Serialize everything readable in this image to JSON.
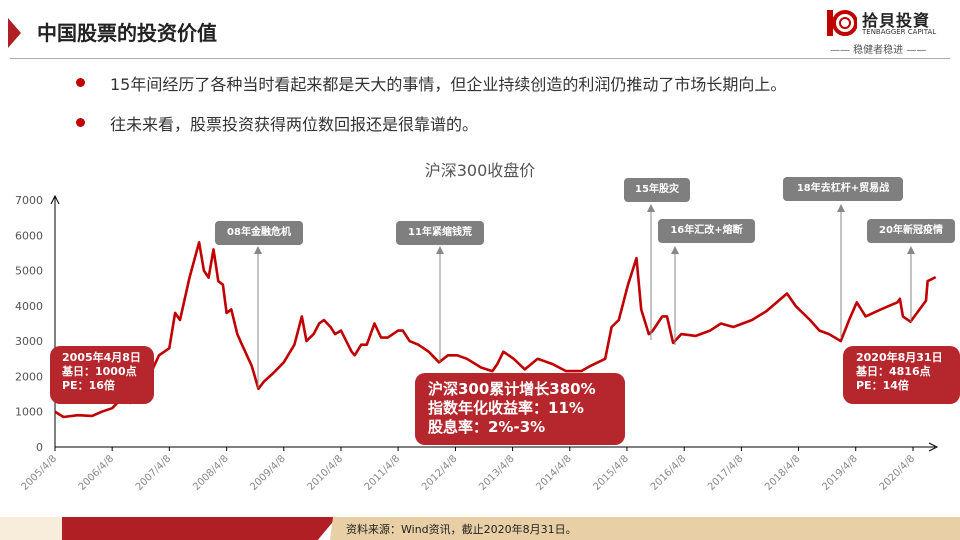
{
  "header": {
    "title": "中国股票的投资价值",
    "brand_cn": "拾貝投資",
    "brand_en": "TENBAGGER CAPITAL",
    "brand_motto": "—— 稳健者稳进 ——",
    "accent": "#b01f24"
  },
  "bullets": [
    "15年间经历了各种当时看起来都是天大的事情，但企业持续创造的利润仍推动了市场长期向上。",
    "往未来看，股票投资获得两位数回报还是很靠谱的。"
  ],
  "chart_data": {
    "type": "line",
    "title": "沪深300收盘价",
    "xlabel": "",
    "ylabel": "",
    "ylim": [
      0,
      7000
    ],
    "yticks": [
      0,
      1000,
      2000,
      3000,
      4000,
      5000,
      6000,
      7000
    ],
    "xticks": [
      "2005/4/8",
      "2006/4/8",
      "2007/4/8",
      "2008/4/8",
      "2009/4/8",
      "2010/4/8",
      "2011/4/8",
      "2012/4/8",
      "2013/4/8",
      "2014/4/8",
      "2015/4/8",
      "2016/4/8",
      "2017/4/8",
      "2018/4/8",
      "2019/4/8",
      "2020/4/8"
    ],
    "grid": false,
    "line_color": "#c00000",
    "points": [
      [
        "2005-04-08",
        1000
      ],
      [
        "2005-06-01",
        850
      ],
      [
        "2005-09-01",
        900
      ],
      [
        "2005-12-01",
        880
      ],
      [
        "2006-02-01",
        1000
      ],
      [
        "2006-04-08",
        1100
      ],
      [
        "2006-06-01",
        1350
      ],
      [
        "2006-08-01",
        1250
      ],
      [
        "2006-10-01",
        1400
      ],
      [
        "2006-12-01",
        2000
      ],
      [
        "2007-02-01",
        2600
      ],
      [
        "2007-04-08",
        2800
      ],
      [
        "2007-05-15",
        3800
      ],
      [
        "2007-06-15",
        3600
      ],
      [
        "2007-08-15",
        4800
      ],
      [
        "2007-10-15",
        5800
      ],
      [
        "2007-11-15",
        5000
      ],
      [
        "2007-12-15",
        4800
      ],
      [
        "2008-01-15",
        5600
      ],
      [
        "2008-02-15",
        4700
      ],
      [
        "2008-03-15",
        4600
      ],
      [
        "2008-04-08",
        3800
      ],
      [
        "2008-05-08",
        3900
      ],
      [
        "2008-06-15",
        3200
      ],
      [
        "2008-07-15",
        2900
      ],
      [
        "2008-09-15",
        2300
      ],
      [
        "2008-10-28",
        1650
      ],
      [
        "2008-12-01",
        1850
      ],
      [
        "2009-02-01",
        2100
      ],
      [
        "2009-04-08",
        2400
      ],
      [
        "2009-06-15",
        2900
      ],
      [
        "2009-08-01",
        3700
      ],
      [
        "2009-08-31",
        3000
      ],
      [
        "2009-10-15",
        3200
      ],
      [
        "2009-11-20",
        3500
      ],
      [
        "2009-12-20",
        3600
      ],
      [
        "2010-02-01",
        3400
      ],
      [
        "2010-03-01",
        3200
      ],
      [
        "2010-04-08",
        3300
      ],
      [
        "2010-06-15",
        2700
      ],
      [
        "2010-07-05",
        2600
      ],
      [
        "2010-08-15",
        2900
      ],
      [
        "2010-09-20",
        2900
      ],
      [
        "2010-11-08",
        3500
      ],
      [
        "2010-12-20",
        3100
      ],
      [
        "2011-02-01",
        3100
      ],
      [
        "2011-04-08",
        3300
      ],
      [
        "2011-05-08",
        3300
      ],
      [
        "2011-06-20",
        3000
      ],
      [
        "2011-08-15",
        2900
      ],
      [
        "2011-10-20",
        2700
      ],
      [
        "2011-12-25",
        2400
      ],
      [
        "2012-02-20",
        2600
      ],
      [
        "2012-04-20",
        2600
      ],
      [
        "2012-06-20",
        2500
      ],
      [
        "2012-09-20",
        2250
      ],
      [
        "2012-11-30",
        2150
      ],
      [
        "2012-12-31",
        2350
      ],
      [
        "2013-02-08",
        2700
      ],
      [
        "2013-04-15",
        2500
      ],
      [
        "2013-06-25",
        2200
      ],
      [
        "2013-09-15",
        2500
      ],
      [
        "2013-12-20",
        2350
      ],
      [
        "2014-03-15",
        2150
      ],
      [
        "2014-06-20",
        2150
      ],
      [
        "2014-08-20",
        2300
      ],
      [
        "2014-11-20",
        2500
      ],
      [
        "2014-12-31",
        3400
      ],
      [
        "2015-02-15",
        3600
      ],
      [
        "2015-04-15",
        4600
      ],
      [
        "2015-06-08",
        5350
      ],
      [
        "2015-07-08",
        3900
      ],
      [
        "2015-08-26",
        3200
      ],
      [
        "2015-09-20",
        3300
      ],
      [
        "2015-11-20",
        3700
      ],
      [
        "2015-12-20",
        3700
      ],
      [
        "2016-01-28",
        2950
      ],
      [
        "2016-03-20",
        3200
      ],
      [
        "2016-06-20",
        3150
      ],
      [
        "2016-09-20",
        3300
      ],
      [
        "2016-11-28",
        3500
      ],
      [
        "2017-02-15",
        3400
      ],
      [
        "2017-06-15",
        3600
      ],
      [
        "2017-09-15",
        3850
      ],
      [
        "2017-11-20",
        4100
      ],
      [
        "2018-01-24",
        4350
      ],
      [
        "2018-03-20",
        4000
      ],
      [
        "2018-06-20",
        3600
      ],
      [
        "2018-08-20",
        3300
      ],
      [
        "2018-10-20",
        3200
      ],
      [
        "2019-01-03",
        3000
      ],
      [
        "2019-02-25",
        3600
      ],
      [
        "2019-04-15",
        4100
      ],
      [
        "2019-06-10",
        3700
      ],
      [
        "2019-09-15",
        3900
      ],
      [
        "2019-12-31",
        4100
      ],
      [
        "2020-01-15",
        4200
      ],
      [
        "2020-02-03",
        3700
      ],
      [
        "2020-03-23",
        3550
      ],
      [
        "2020-05-20",
        3900
      ],
      [
        "2020-06-30",
        4150
      ],
      [
        "2020-07-10",
        4700
      ],
      [
        "2020-08-31",
        4816
      ]
    ],
    "annotations": [
      "08年金融危机",
      "11年紧缩钱荒",
      "15年股灾",
      "16年汇改+熔断",
      "18年去杠杆+贸易战",
      "20年新冠疫情"
    ],
    "callouts": {
      "start": [
        "2005年4月8日",
        "基日：1000点",
        "PE：16倍"
      ],
      "summary": [
        "沪深300累计增长380%",
        "指数年化收益率：11%",
        "股息率：2%-3%"
      ],
      "end": [
        "2020年8月31日",
        "基日：4816点",
        "PE：14倍"
      ]
    }
  },
  "footer": {
    "source": "资料来源：Wind资讯，截止2020年8月31日。"
  }
}
